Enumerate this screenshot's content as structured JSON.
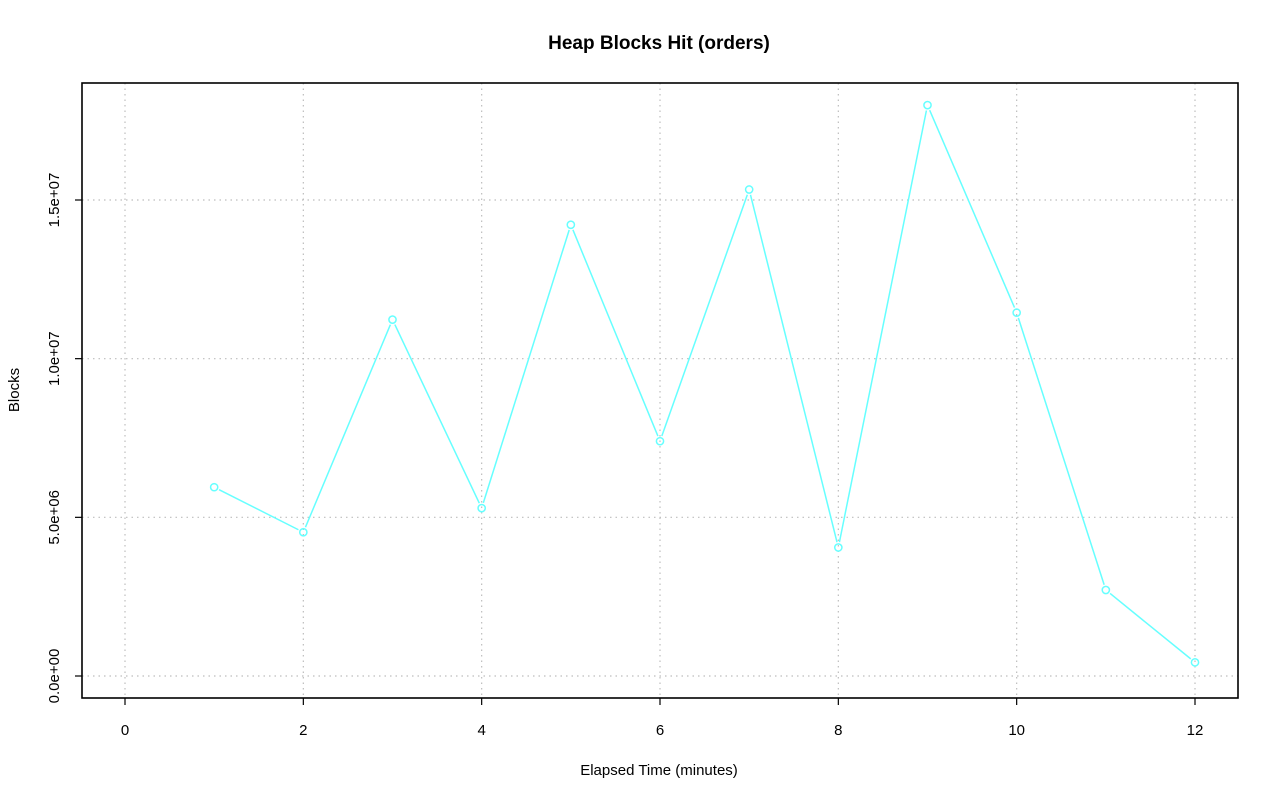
{
  "chart_data": {
    "type": "line",
    "title": "Heap Blocks Hit (orders)",
    "xlabel": "Elapsed Time (minutes)",
    "ylabel": "Blocks",
    "xlim": [
      0,
      12
    ],
    "ylim": [
      0,
      18000000
    ],
    "x_ticks": [
      0,
      2,
      4,
      6,
      8,
      10,
      12
    ],
    "x_tick_labels": [
      "0",
      "2",
      "4",
      "6",
      "8",
      "10",
      "12"
    ],
    "y_ticks": [
      0,
      5000000,
      10000000,
      15000000
    ],
    "y_tick_labels": [
      "0.0e+00",
      "5.0e+06",
      "1.0e+07",
      "1.5e+07"
    ],
    "grid": true,
    "series": [
      {
        "color": "#66ffff",
        "marker": "open-circle",
        "x": [
          1,
          2,
          3,
          4,
          5,
          6,
          7,
          8,
          9,
          10,
          11,
          12
        ],
        "y": [
          5950000,
          4530000,
          11230000,
          5290000,
          14220000,
          7400000,
          15330000,
          4050000,
          17990000,
          11450000,
          2710000,
          430000
        ]
      }
    ]
  }
}
